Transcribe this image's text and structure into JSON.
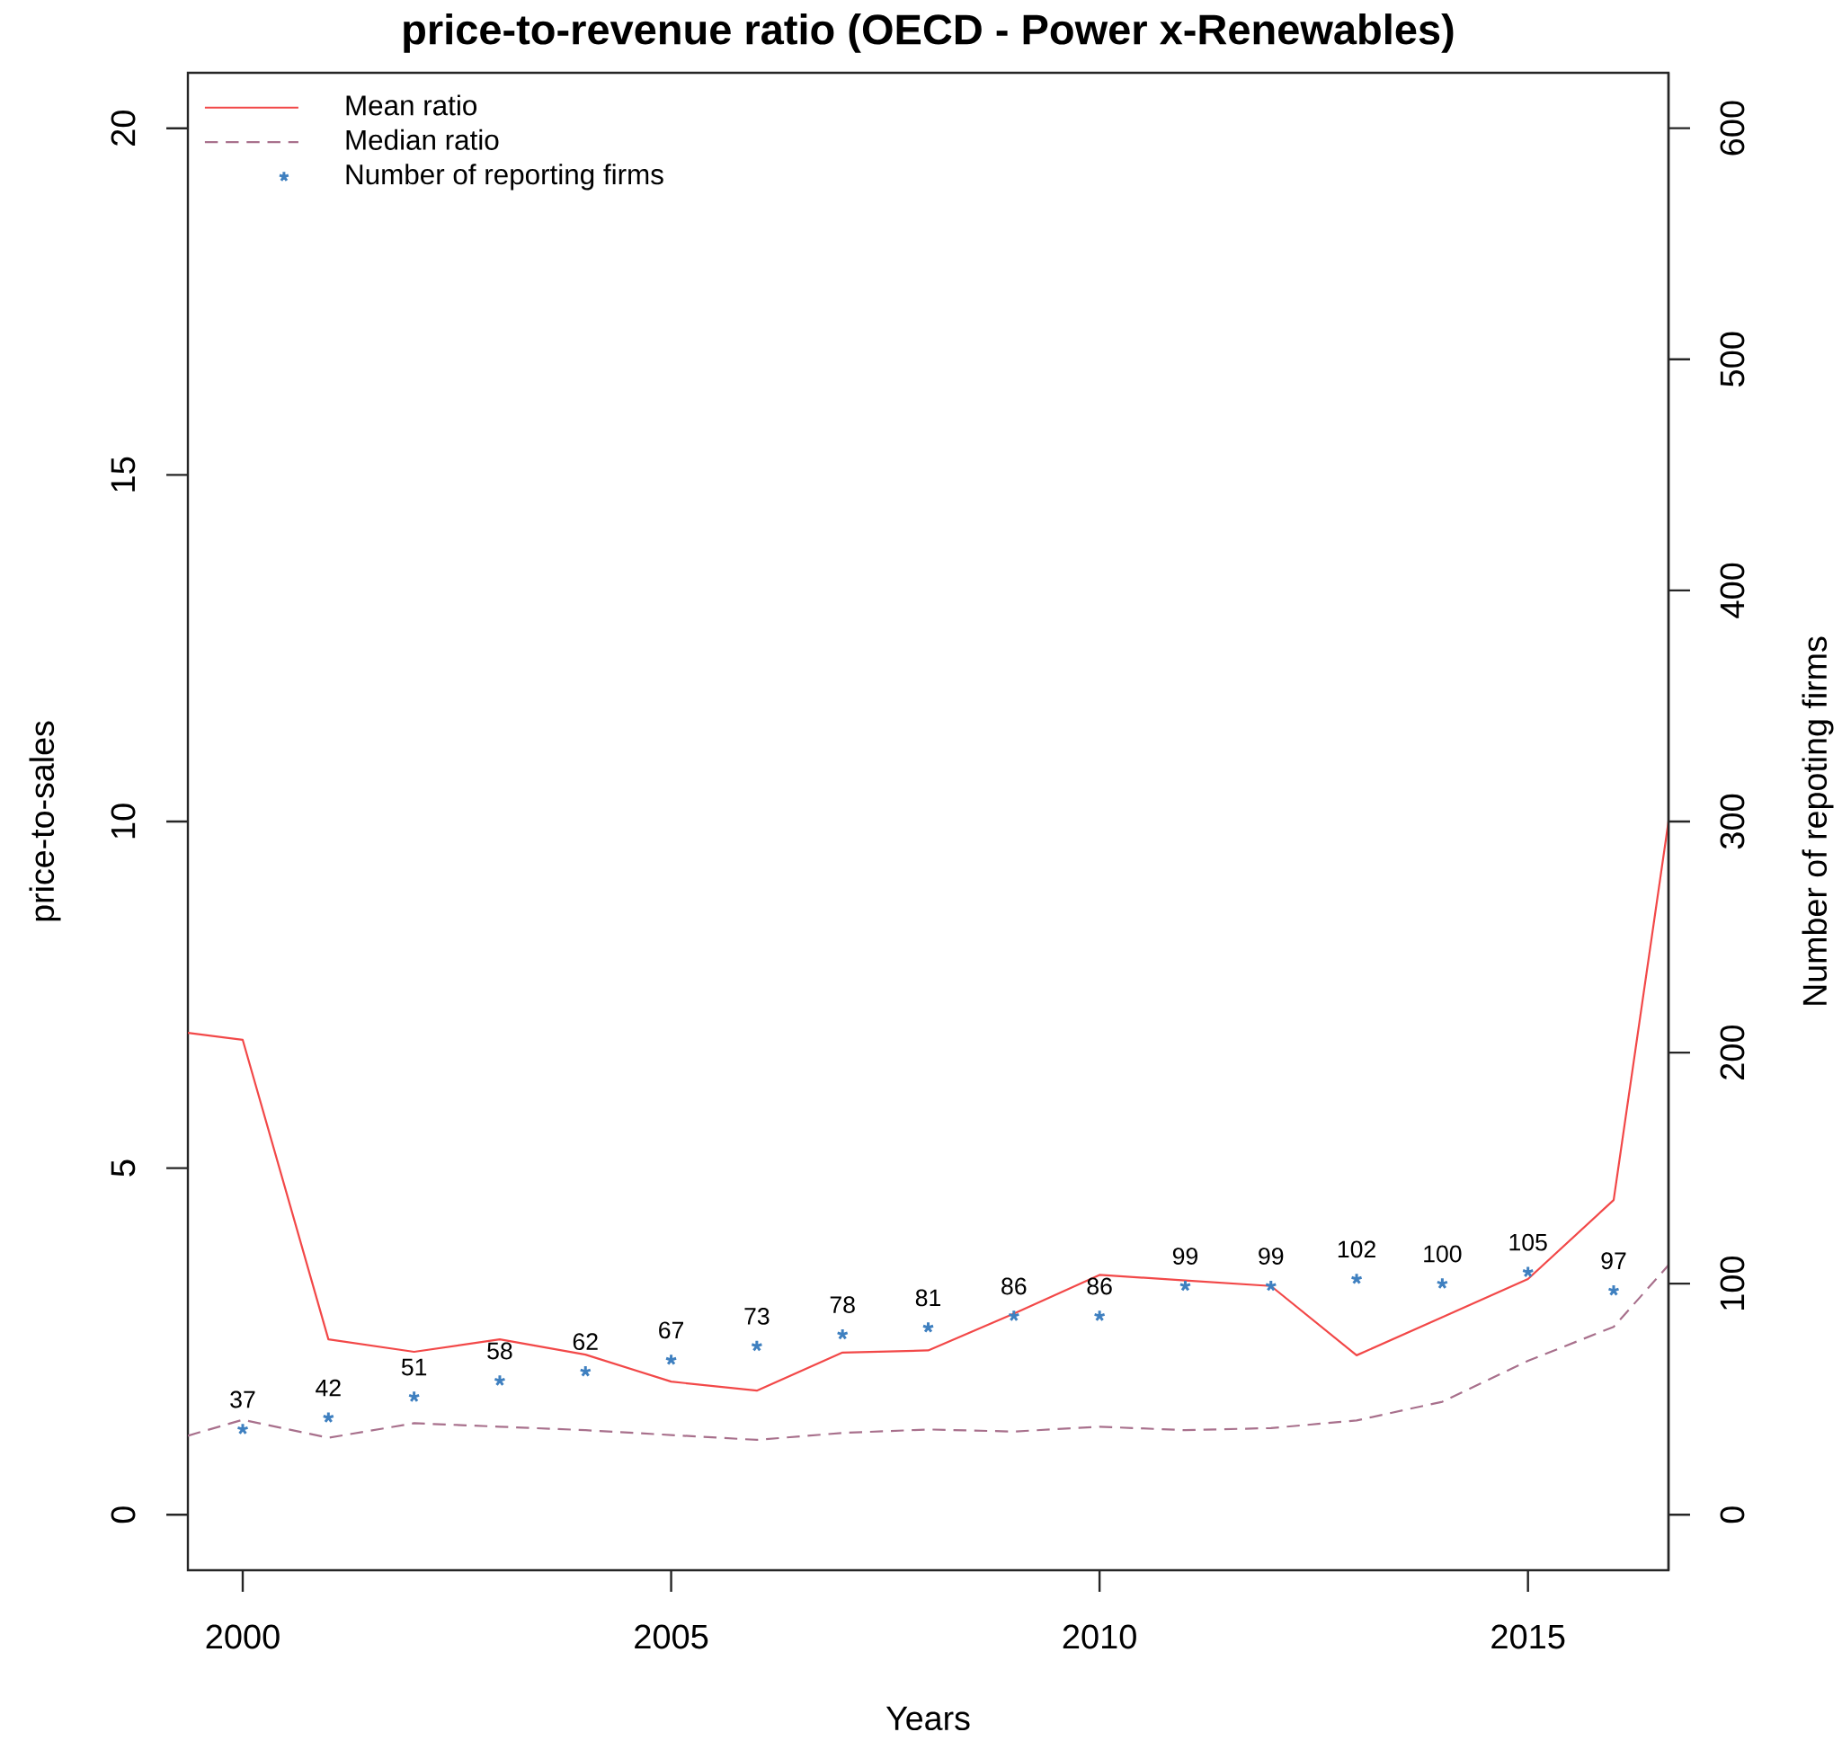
{
  "chart_data": {
    "type": "line",
    "title": "price-to-revenue ratio (OECD - Power x-Renewables)",
    "xlabel": "Years",
    "ylabel": "price-to-sales",
    "y2label": "Number of repoting firms",
    "xlim": [
      1999.36,
      2016.64
    ],
    "xticks": [
      2000,
      2005,
      2010,
      2015
    ],
    "ylim": [
      -0.8,
      20.8
    ],
    "yticks": [
      0,
      5,
      10,
      15,
      20
    ],
    "y2lim": [
      -24,
      624
    ],
    "y2ticks": [
      0,
      100,
      200,
      300,
      400,
      500,
      600
    ],
    "legend": "top left",
    "series": [
      {
        "name": "Mean ratio",
        "color": "#f24848",
        "line_style": "solid",
        "x": [
          1999.36,
          2000,
          2001,
          2002,
          2003,
          2004,
          2005,
          2006,
          2007,
          2008,
          2009,
          2010,
          2011,
          2012,
          2013,
          2014,
          2015,
          2016,
          2016.64
        ],
        "values": [
          6.95,
          6.85,
          2.53,
          2.35,
          2.53,
          2.31,
          1.92,
          1.79,
          2.34,
          2.37,
          2.9,
          3.46,
          3.38,
          3.3,
          2.3,
          2.85,
          3.4,
          4.54,
          10.0
        ]
      },
      {
        "name": "Median ratio",
        "color": "#a8708c",
        "line_style": "dashed",
        "x": [
          1999.36,
          2000,
          2001,
          2002,
          2003,
          2004,
          2005,
          2006,
          2007,
          2008,
          2009,
          2010,
          2011,
          2012,
          2013,
          2014,
          2015,
          2016,
          2016.64
        ],
        "values": [
          1.14,
          1.37,
          1.11,
          1.32,
          1.27,
          1.22,
          1.15,
          1.08,
          1.18,
          1.23,
          1.2,
          1.27,
          1.22,
          1.25,
          1.36,
          1.63,
          2.22,
          2.71,
          3.6
        ]
      },
      {
        "name": "Number of reporting firms",
        "type": "scatter",
        "axis": "y2",
        "marker": "cross",
        "color": "#3f80c0",
        "x": [
          2000,
          2001,
          2002,
          2003,
          2004,
          2005,
          2006,
          2007,
          2008,
          2009,
          2010,
          2011,
          2012,
          2013,
          2014,
          2015,
          2016
        ],
        "values": [
          37,
          42,
          51,
          58,
          62,
          67,
          73,
          78,
          81,
          86,
          86,
          99,
          99,
          102,
          100,
          105,
          97
        ],
        "value_labels": [
          "37",
          "42",
          "51",
          "58",
          "62",
          "67",
          "73",
          "78",
          "81",
          "86",
          "86",
          "99",
          "99",
          "102",
          "100",
          "105",
          "97"
        ]
      }
    ]
  }
}
